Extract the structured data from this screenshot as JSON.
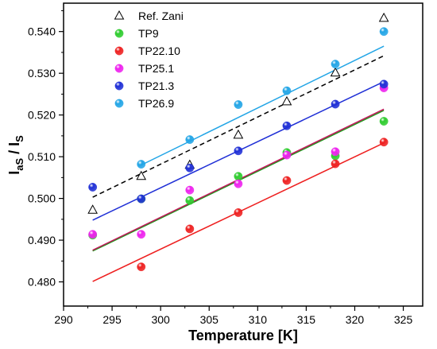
{
  "chart_data": {
    "type": "scatter",
    "xlabel": "Temperature [K]",
    "ylabel": {
      "main": "I",
      "sub1": "aS",
      "sep": " / I",
      "sub2": "S"
    },
    "xlim": [
      290,
      327
    ],
    "ylim": [
      0.4742,
      0.5468
    ],
    "x_ticks": [
      "290",
      "295",
      "300",
      "305",
      "310",
      "315",
      "320",
      "325"
    ],
    "y_ticks": [
      "0.480",
      "0.490",
      "0.500",
      "0.510",
      "0.520",
      "0.530",
      "0.540"
    ],
    "legend_placement": "top-left",
    "series": [
      {
        "name": "Ref. Zani",
        "marker": "triangle-open",
        "color": "#000000",
        "line_style": "dashed",
        "x": [
          293,
          298,
          303,
          308,
          313,
          318,
          323
        ],
        "y": [
          0.4972,
          0.5053,
          0.508,
          0.5152,
          0.5232,
          0.5301,
          0.5432
        ],
        "fit": [
          [
            293,
            0.5003
          ],
          [
            323,
            0.5342
          ]
        ]
      },
      {
        "name": "TP9",
        "marker": "sphere",
        "color": "#2ecc2e",
        "line_color": "#1a9a1a",
        "x": [
          293,
          298,
          303,
          308,
          313,
          318,
          323
        ],
        "y": [
          0.4912,
          0.4999,
          0.4995,
          0.5053,
          0.511,
          0.5102,
          0.5185
        ],
        "fit": [
          [
            293,
            0.4874
          ],
          [
            323,
            0.5211
          ]
        ]
      },
      {
        "name": "TP22.10",
        "marker": "sphere",
        "color": "#ee2020",
        "line_color": "#ee2020",
        "x": [
          298,
          303,
          308,
          313,
          318,
          323
        ],
        "y": [
          0.4836,
          0.4927,
          0.4966,
          0.5043,
          0.5083,
          0.5135
        ],
        "fit": [
          [
            293,
            0.4801
          ],
          [
            323,
            0.5133
          ]
        ]
      },
      {
        "name": "TP25.1",
        "marker": "sphere",
        "color": "#ee22ee",
        "line_color": "#c2185b",
        "x": [
          293,
          298,
          303,
          308,
          313,
          318,
          323
        ],
        "y": [
          0.4914,
          0.4914,
          0.502,
          0.5035,
          0.5104,
          0.5112,
          0.5265
        ],
        "fit": [
          [
            293,
            0.4876
          ],
          [
            323,
            0.5214
          ]
        ]
      },
      {
        "name": "TP21.3",
        "marker": "sphere",
        "color": "#1f2fd6",
        "line_color": "#1f2fd6",
        "x": [
          293,
          298,
          303,
          308,
          313,
          318,
          323
        ],
        "y": [
          0.5027,
          0.4999,
          0.5073,
          0.5114,
          0.5174,
          0.5226,
          0.5274
        ],
        "fit": [
          [
            293,
            0.4948
          ],
          [
            323,
            0.528
          ]
        ]
      },
      {
        "name": "TP26.9",
        "marker": "sphere",
        "color": "#22a5e6",
        "line_color": "#22a5e6",
        "x": [
          298,
          303,
          308,
          313,
          318,
          323
        ],
        "y": [
          0.5082,
          0.5141,
          0.5225,
          0.5258,
          0.5322,
          0.54
        ],
        "fit": [
          [
            298,
            0.508
          ],
          [
            323,
            0.5365
          ]
        ]
      }
    ]
  }
}
